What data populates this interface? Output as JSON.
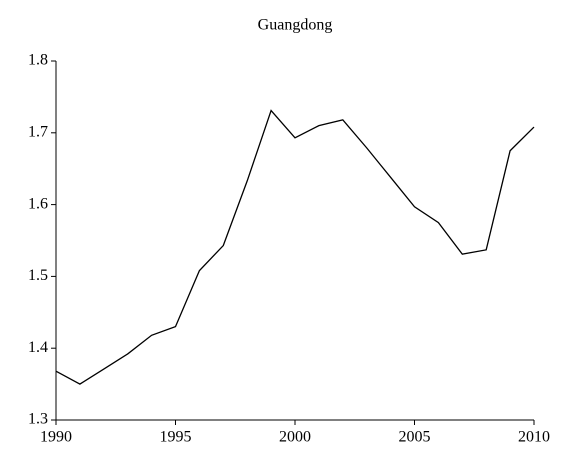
{
  "chart_data": {
    "type": "line",
    "title": "Guangdong",
    "x": [
      1990,
      1991,
      1992,
      1993,
      1994,
      1995,
      1996,
      1997,
      1998,
      1999,
      2000,
      2001,
      2002,
      2003,
      2004,
      2005,
      2006,
      2007,
      2008,
      2009,
      2010
    ],
    "series": [
      {
        "name": "Guangdong",
        "color": "#000000",
        "values": [
          1.368,
          1.35,
          1.371,
          1.392,
          1.418,
          1.43,
          1.508,
          1.543,
          1.633,
          1.731,
          1.693,
          1.71,
          1.718,
          1.679,
          1.638,
          1.597,
          1.575,
          1.531,
          1.537,
          1.675,
          1.708
        ]
      }
    ],
    "xlim": [
      1990,
      2010
    ],
    "xticks": [
      1990,
      1995,
      2000,
      2005,
      2010
    ],
    "ylim": [
      1.3,
      1.8
    ],
    "yticks": [
      1.3,
      1.4,
      1.5,
      1.6,
      1.7,
      1.8
    ]
  }
}
